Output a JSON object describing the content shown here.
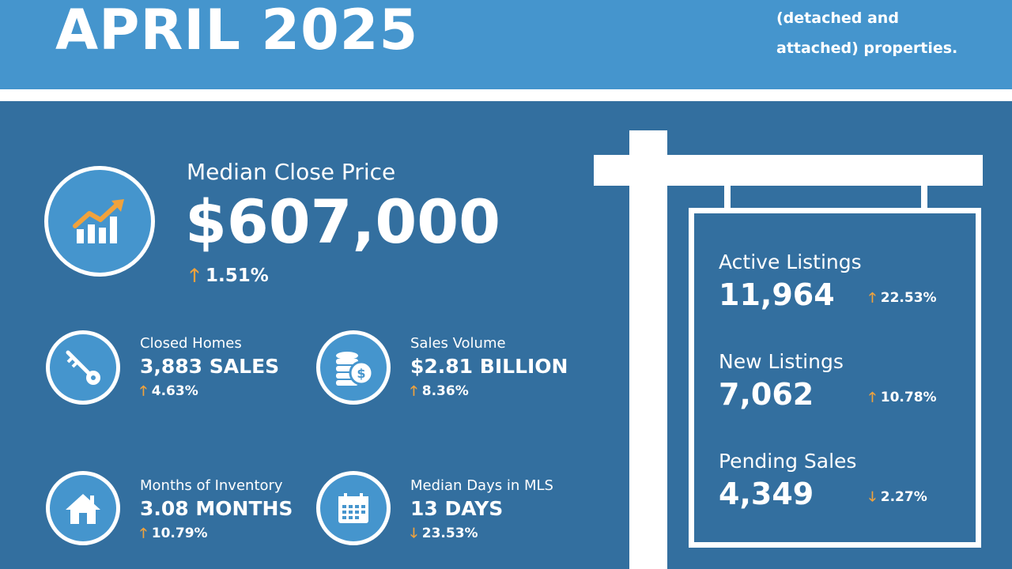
{
  "header": {
    "title": "APRIL 2025",
    "note_line1": "(detached and",
    "note_line2": "attached) properties."
  },
  "colors": {
    "header_blue": "#4595cd",
    "background_blue": "#336f9f",
    "arrow_orange": "#f0a23c",
    "white": "#ffffff"
  },
  "median_close_price": {
    "label": "Median Close Price",
    "value": "$607,000",
    "change": "1.51%",
    "direction": "up",
    "icon": "growth-chart-icon"
  },
  "stats": {
    "closed_homes": {
      "label": "Closed Homes",
      "value": "3,883 SALES",
      "change": "4.63%",
      "direction": "up",
      "icon": "key-icon"
    },
    "sales_volume": {
      "label": "Sales Volume",
      "value": "$2.81 BILLION",
      "change": "8.36%",
      "direction": "up",
      "icon": "coins-icon"
    },
    "months_inventory": {
      "label": "Months of Inventory",
      "value": "3.08 MONTHS",
      "change": "10.79%",
      "direction": "up",
      "icon": "house-icon"
    },
    "median_days": {
      "label": "Median Days in MLS",
      "value": "13 DAYS",
      "change": "23.53%",
      "direction": "down",
      "icon": "calendar-icon"
    }
  },
  "sign": {
    "active_listings": {
      "label": "Active Listings",
      "value": "11,964",
      "change": "22.53%",
      "direction": "up"
    },
    "new_listings": {
      "label": "New Listings",
      "value": "7,062",
      "change": "10.78%",
      "direction": "up"
    },
    "pending_sales": {
      "label": "Pending Sales",
      "value": "4,349",
      "change": "2.27%",
      "direction": "down"
    }
  },
  "arrows": {
    "up": "🡑",
    "down": "🡓"
  }
}
